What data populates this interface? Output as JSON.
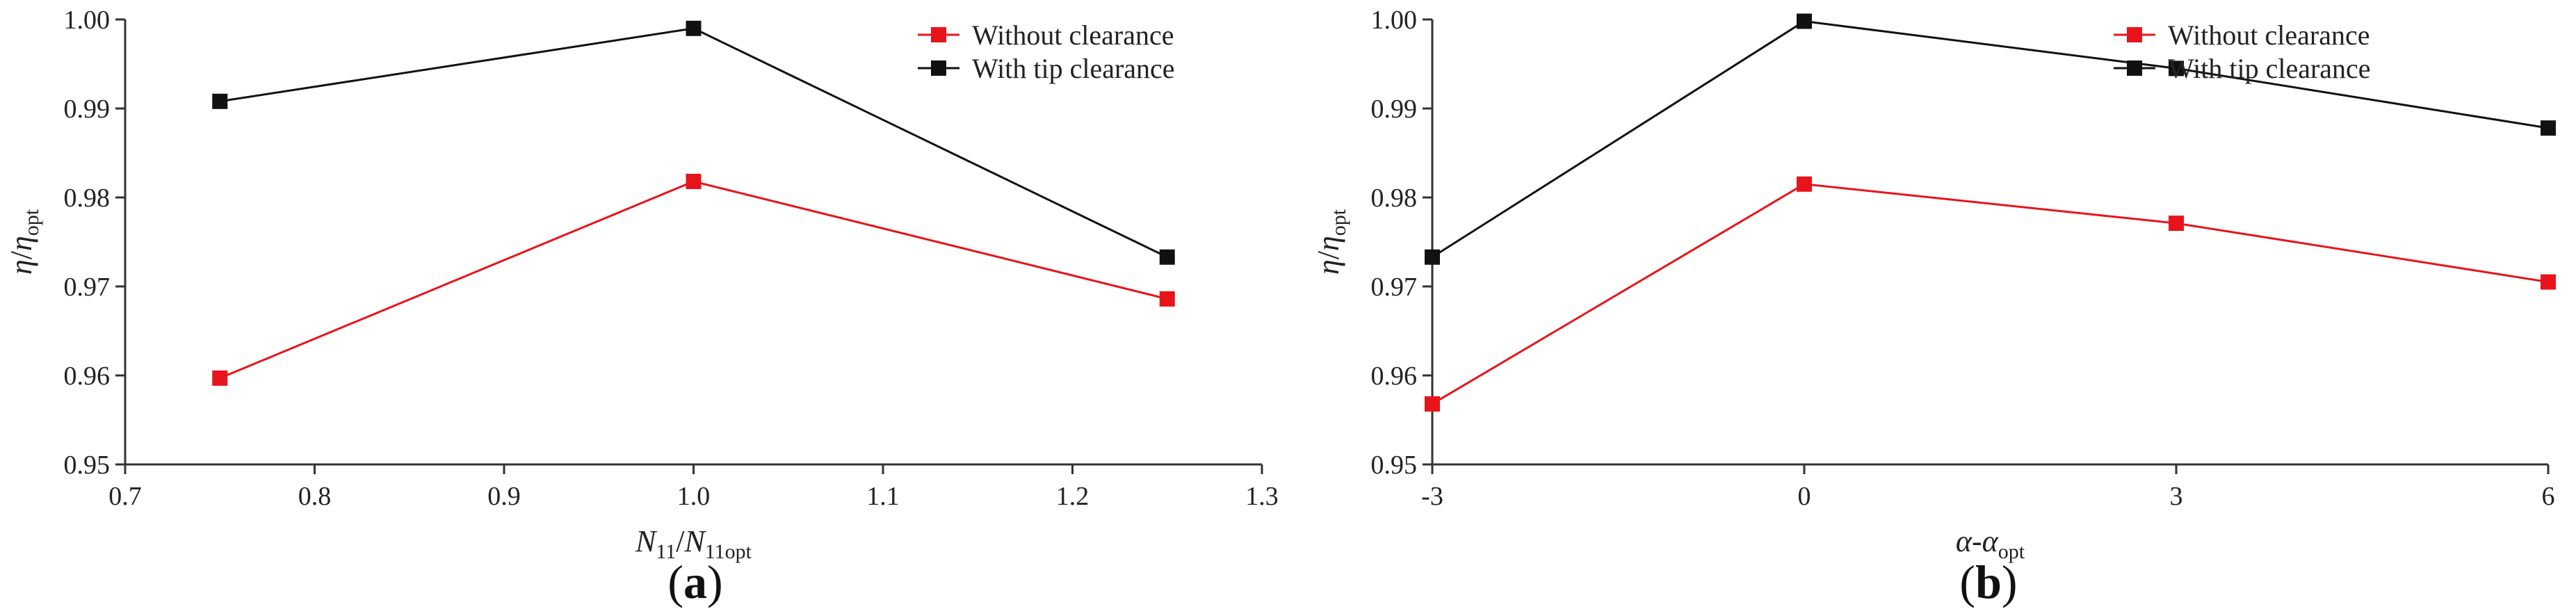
{
  "chart_data": [
    {
      "type": "line",
      "panel_label_parts": [
        "(",
        "a",
        ")"
      ],
      "xlabel_parts": {
        "main": "N",
        "sub1": "11",
        "slash": "/",
        "main2": "N",
        "sub2": "11opt"
      },
      "ylabel_parts": {
        "eta": "η",
        "slash": "/",
        "eta2": "η",
        "sub": "opt"
      },
      "xlim": [
        0.7,
        1.3
      ],
      "ylim": [
        0.95,
        1.0
      ],
      "x_ticks": [
        "0.7",
        "0.8",
        "0.9",
        "1.0",
        "1.1",
        "1.2",
        "1.3"
      ],
      "y_ticks": [
        "0.95",
        "0.96",
        "0.97",
        "0.98",
        "0.99",
        "1.00"
      ],
      "x_tick_values": [
        0.7,
        0.8,
        0.9,
        1.0,
        1.1,
        1.2,
        1.3
      ],
      "y_tick_values": [
        0.95,
        0.96,
        0.97,
        0.98,
        0.99,
        1.0
      ],
      "legend_position": "top-right",
      "series": [
        {
          "name": "Without clearance",
          "color": "#e8141b",
          "x": [
            0.75,
            1.0,
            1.25
          ],
          "y": [
            0.9597,
            0.9818,
            0.9686
          ]
        },
        {
          "name": "With tip clearance",
          "color": "#111111",
          "x": [
            0.75,
            1.0,
            1.25
          ],
          "y": [
            0.9908,
            0.999,
            0.9733
          ]
        }
      ]
    },
    {
      "type": "line",
      "panel_label_parts": [
        "(",
        "b",
        ")"
      ],
      "xlabel_parts": {
        "main": "α",
        "dash": "-",
        "main2": "α",
        "sub": "opt"
      },
      "ylabel_parts": {
        "eta": "η",
        "slash": "/",
        "eta2": "η",
        "sub": "opt"
      },
      "xlim": [
        -3,
        6
      ],
      "ylim": [
        0.95,
        1.0
      ],
      "x_ticks": [
        "-3",
        "0",
        "3",
        "6"
      ],
      "y_ticks": [
        "0.95",
        "0.96",
        "0.97",
        "0.98",
        "0.99",
        "1.00"
      ],
      "x_tick_values": [
        -3,
        0,
        3,
        6
      ],
      "y_tick_values": [
        0.95,
        0.96,
        0.97,
        0.98,
        0.99,
        1.0
      ],
      "legend_position": "top-right",
      "series": [
        {
          "name": "Without clearance",
          "color": "#e8141b",
          "x": [
            -3,
            0,
            3,
            6
          ],
          "y": [
            0.9568,
            0.9815,
            0.9771,
            0.9705
          ]
        },
        {
          "name": "With tip clearance",
          "color": "#111111",
          "x": [
            -3,
            0,
            3,
            6
          ],
          "y": [
            0.9733,
            0.9998,
            0.9945,
            0.9878
          ]
        }
      ]
    }
  ]
}
